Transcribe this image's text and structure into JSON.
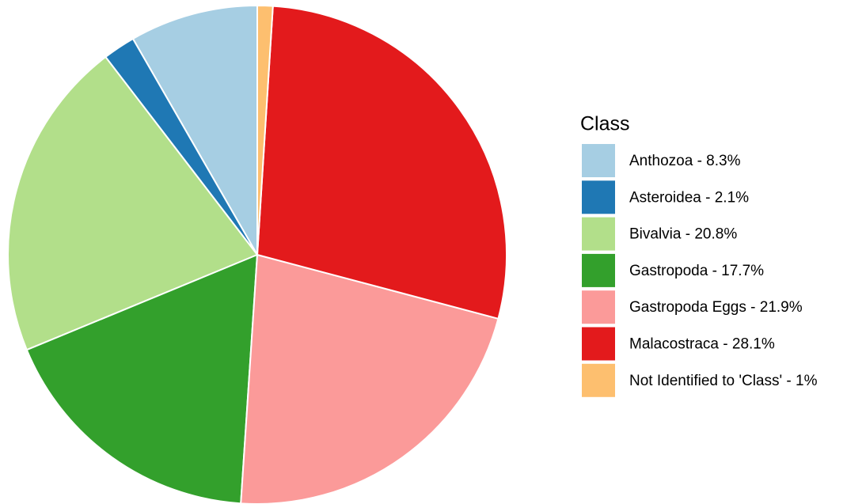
{
  "chart_data": {
    "type": "pie",
    "legend_title": "Class",
    "categories": [
      "Anthozoa - 8.3%",
      "Asteroidea - 2.1%",
      "Bivalvia - 20.8%",
      "Gastropoda - 17.7%",
      "Gastropoda Eggs - 21.9%",
      "Malacostraca - 28.1%",
      "Not Identified to 'Class' - 1%"
    ],
    "values": [
      8.3,
      2.1,
      20.8,
      17.7,
      21.9,
      28.1,
      1
    ],
    "colors": [
      "#a6cee3",
      "#1f78b4",
      "#b2df8a",
      "#33a02c",
      "#fb9a99",
      "#e31a1c",
      "#fdbf6f"
    ],
    "legend": "right"
  }
}
